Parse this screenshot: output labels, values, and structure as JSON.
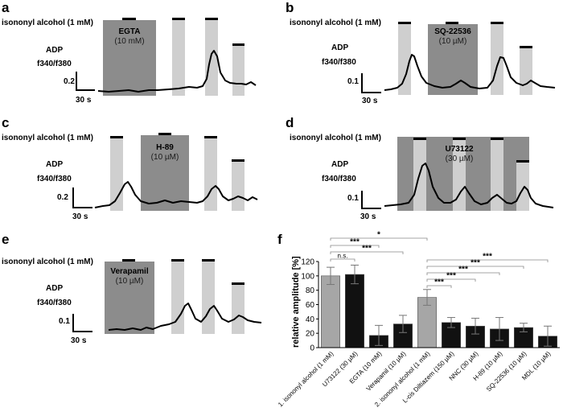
{
  "panels": {
    "a": {
      "letter": "a",
      "title": "isononyl alcohol (1 mM)",
      "inhibitor": "EGTA",
      "conc": "(10 mM)",
      "adp": "ADP",
      "ratio": "f340/f380",
      "scale": "0.2",
      "time": "30 s"
    },
    "b": {
      "letter": "b",
      "title": "isononyl alcohol (1 mM)",
      "inhibitor": "SQ-22536",
      "conc": "(10 µM)",
      "adp": "ADP",
      "ratio": "f340/f380",
      "scale": "0.1",
      "time": "30 s"
    },
    "c": {
      "letter": "c",
      "title": "isononyl alcohol (1 mM)",
      "inhibitor": "H-89",
      "conc": "(10 µM)",
      "adp": "ADP",
      "ratio": "f340/f380",
      "scale": "0.2",
      "time": "30 s"
    },
    "d": {
      "letter": "d",
      "title": "isononyl alcohol (1 mM)",
      "inhibitor": "U73122",
      "conc": "(30 µM)",
      "adp": "ADP",
      "ratio": "f340/f380",
      "scale": "0.1",
      "time": "30 s"
    },
    "e": {
      "letter": "e",
      "title": "isononyl alcohol (1 mM)",
      "inhibitor": "Verapamil",
      "conc": "(10 µM)",
      "adp": "ADP",
      "ratio": "f340/f380",
      "scale": "0.1",
      "time": "30 s"
    },
    "f": {
      "letter": "f"
    }
  },
  "chart_data": {
    "type": "bar",
    "title": "",
    "ylabel": "relative amplitude [%]",
    "xlabel": "",
    "ylim": [
      0,
      120
    ],
    "yticks": [
      0,
      20,
      40,
      60,
      80,
      100,
      120
    ],
    "categories": [
      "1. isononyl alcohol (1 mM)",
      "U73122 (30 µM)",
      "EGTA (10 mM)",
      "Verapamil (10 µM)",
      "2. isononyl alcohol (1 mM)",
      "L-cis Diltiazem (150 µM)",
      "NNC (30 µM)",
      "H-89 (10 µM)",
      "SQ-22536 (10 µM)",
      "MDL (10 µM)"
    ],
    "values": [
      100,
      102,
      17,
      33,
      70,
      35,
      30,
      26,
      28,
      16
    ],
    "errors": [
      12,
      13,
      14,
      12,
      11,
      7,
      11,
      16,
      6,
      14
    ],
    "colors": [
      "#a6a6a6",
      "#111111",
      "#111111",
      "#111111",
      "#a6a6a6",
      "#111111",
      "#111111",
      "#111111",
      "#111111",
      "#111111"
    ],
    "significance": [
      {
        "from": 0,
        "to": 4,
        "label": "*"
      },
      {
        "from": 0,
        "to": 2,
        "label": "***"
      },
      {
        "from": 0,
        "to": 3,
        "label": "***"
      },
      {
        "from": 0,
        "to": 1,
        "label": "n.s."
      },
      {
        "from": 4,
        "to": 9,
        "label": "***"
      },
      {
        "from": 4,
        "to": 8,
        "label": "***"
      },
      {
        "from": 4,
        "to": 7,
        "label": "***"
      },
      {
        "from": 4,
        "to": 6,
        "label": "***"
      },
      {
        "from": 4,
        "to": 5,
        "label": "***"
      }
    ]
  }
}
